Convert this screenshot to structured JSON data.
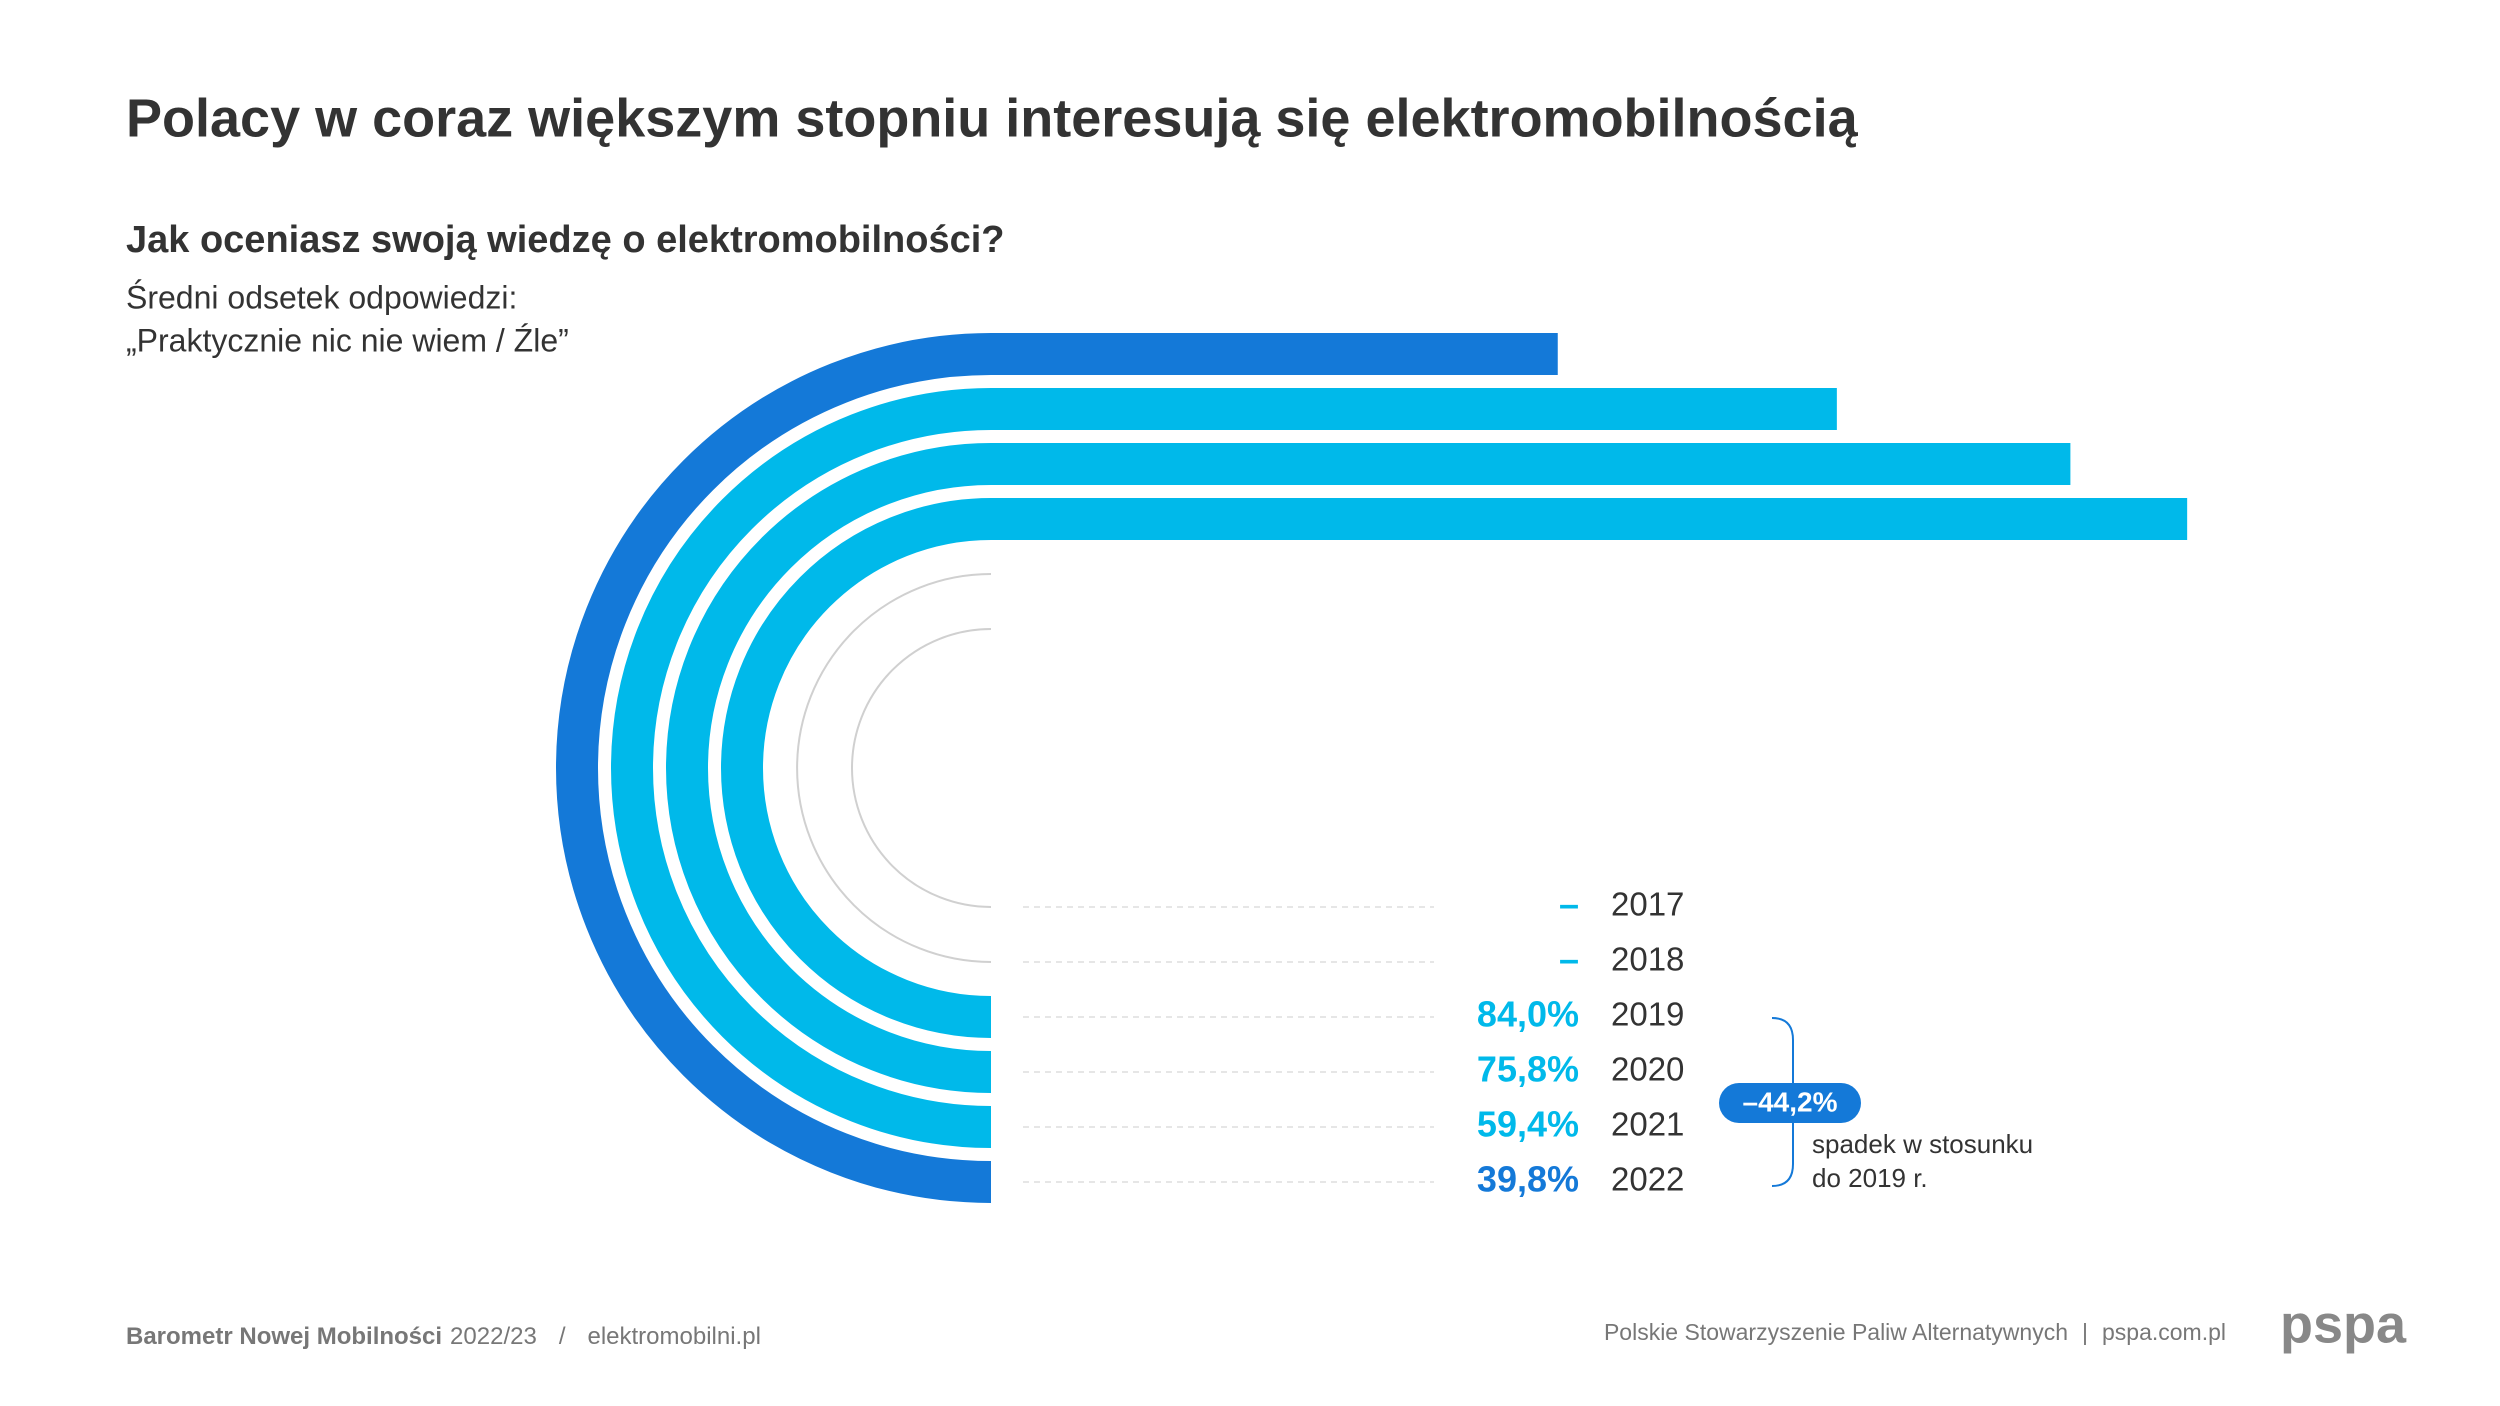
{
  "chart_data": {
    "type": "radial-bar",
    "title": "Polacy w coraz większym stopniu interesują się elektromobilnością",
    "subtitle": "Jak oceniasz swoją wiedzę o elektromobilności?",
    "note": [
      "Średni odsetek odpowiedzi:",
      "„Praktycznie nic nie wiem / Źle”"
    ],
    "categories": [
      "2017",
      "2018",
      "2019",
      "2020",
      "2021",
      "2022"
    ],
    "values": [
      null,
      null,
      84.0,
      75.8,
      59.4,
      39.8
    ],
    "value_labels": [
      "–",
      "–",
      "84,0%",
      "75,8%",
      "59,4%",
      "39,8%"
    ],
    "colors": [
      "#00b9ea",
      "#00b9ea",
      "#00b9ea",
      "#00b9ea",
      "#00b9ea",
      "#1479d8"
    ],
    "change": {
      "value": -44.2,
      "label": "–44,2%",
      "text": [
        "spadek w stosunku",
        "do 2019 r."
      ]
    }
  },
  "footer": {
    "source": "Barometr Nowej Mobilności",
    "edition": "2022/23",
    "separator": "/",
    "site": "elektromobilni.pl",
    "org": "Polskie Stowarzyszenie Paliw Alternatywnych",
    "org_separator": "|",
    "org_site": "pspa.com.pl",
    "logo": "pspa"
  }
}
